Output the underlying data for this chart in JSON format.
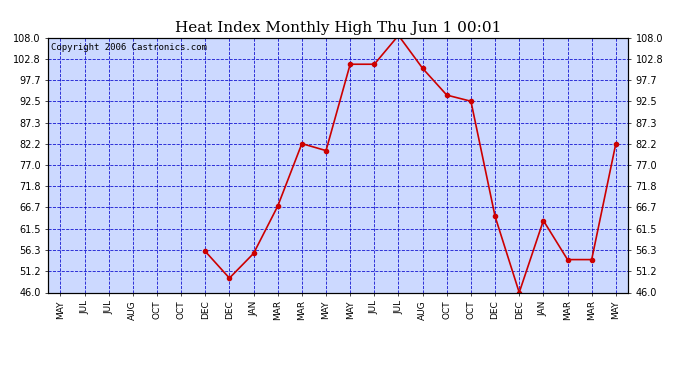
{
  "title": "Heat Index Monthly High Thu Jun 1 00:01",
  "copyright": "Copyright 2006 Castronics.com",
  "x_labels": [
    "MAY",
    "JUL",
    "JUL",
    "AUG",
    "OCT",
    "OCT",
    "DEC",
    "DEC",
    "JAN",
    "MAR",
    "MAR",
    "MAY",
    "MAY",
    "JUL",
    "JUL",
    "AUG",
    "OCT",
    "OCT",
    "DEC",
    "DEC",
    "JAN",
    "MAR",
    "MAR",
    "MAY"
  ],
  "y_values": [
    null,
    null,
    null,
    null,
    null,
    null,
    56.0,
    49.5,
    55.5,
    67.0,
    82.2,
    80.5,
    101.5,
    101.5,
    108.5,
    100.5,
    94.0,
    92.5,
    64.5,
    46.0,
    63.5,
    54.0,
    54.0,
    82.2
  ],
  "ylim": [
    46.0,
    108.0
  ],
  "yticks": [
    46.0,
    51.2,
    56.3,
    61.5,
    66.7,
    71.8,
    77.0,
    82.2,
    87.3,
    92.5,
    97.7,
    102.8,
    108.0
  ],
  "line_color": "#cc0000",
  "marker_color": "#cc0000",
  "bg_color": "#ccd9ff",
  "outer_bg": "#ffffff",
  "grid_color": "#0000cc",
  "title_color": "#000000",
  "title_fontsize": 11,
  "copyright_fontsize": 6.5
}
